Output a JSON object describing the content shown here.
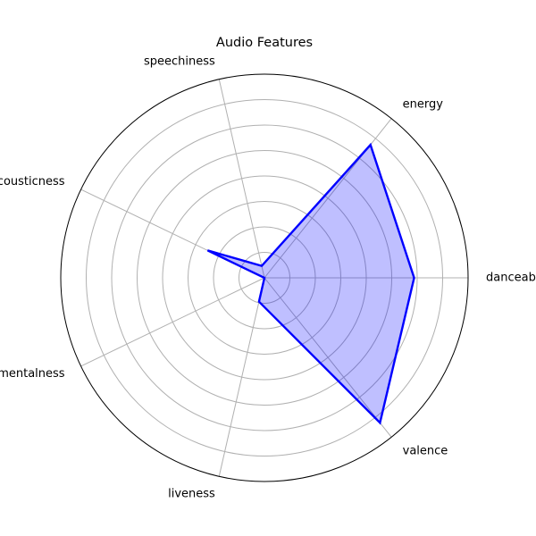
{
  "chart_data": {
    "type": "radar",
    "title": "Audio Features",
    "categories": [
      "danceability",
      "energy",
      "speechiness",
      "acousticness",
      "instrumentalness",
      "liveness",
      "valence"
    ],
    "series": [
      {
        "name": "Audio Features",
        "values": [
          0.735,
          0.835,
          0.06,
          0.31,
          0.0,
          0.12,
          0.91
        ],
        "color": "#0000ff"
      }
    ],
    "rlim": [
      0,
      1
    ],
    "rings": 8,
    "grid": true
  }
}
